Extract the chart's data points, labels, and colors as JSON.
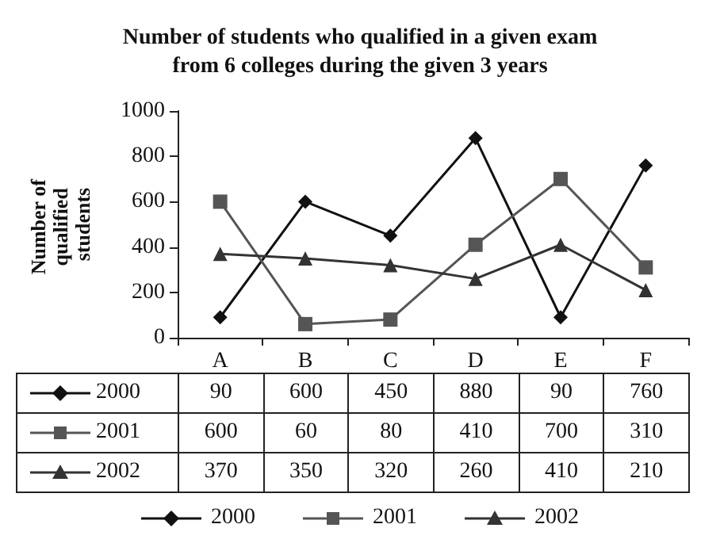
{
  "chart_data": {
    "type": "line",
    "title": "Number of students who qualified in a given exam\nfrom 6 colleges during the given 3 years",
    "ylabel": "Number of qualified students",
    "categories": [
      "A",
      "B",
      "C",
      "D",
      "E",
      "F"
    ],
    "series": [
      {
        "name": "2000",
        "color": "#111111",
        "marker": "diamond",
        "values": [
          90,
          600,
          450,
          880,
          90,
          760
        ]
      },
      {
        "name": "2001",
        "color": "#555555",
        "marker": "square",
        "values": [
          600,
          60,
          80,
          410,
          700,
          310
        ]
      },
      {
        "name": "2002",
        "color": "#333333",
        "marker": "triangle",
        "values": [
          370,
          350,
          320,
          260,
          410,
          210
        ]
      }
    ],
    "ylim": [
      0,
      1000
    ],
    "yticks": [
      0,
      200,
      400,
      600,
      800,
      1000
    ],
    "grid": false,
    "legend": "bottom",
    "data_labels": true,
    "line_style": "solid"
  }
}
